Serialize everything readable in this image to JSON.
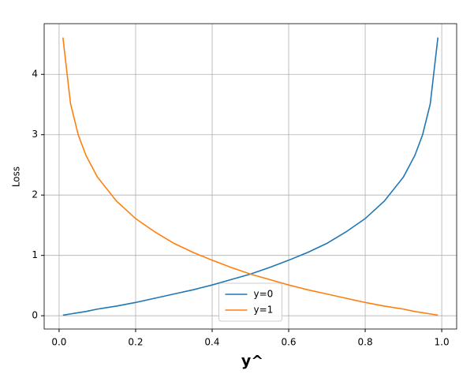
{
  "chart_data": {
    "type": "line",
    "x_label": "y^",
    "y_label": "Loss",
    "x": [
      0.01,
      0.03,
      0.05,
      0.07,
      0.1,
      0.15,
      0.2,
      0.25,
      0.3,
      0.35,
      0.4,
      0.45,
      0.5,
      0.55,
      0.6,
      0.65,
      0.7,
      0.75,
      0.8,
      0.85,
      0.9,
      0.93,
      0.95,
      0.97,
      0.99
    ],
    "series": [
      {
        "name": "y=0",
        "color": "#1f77b4",
        "values": [
          0.01,
          0.03,
          0.05,
          0.07,
          0.11,
          0.16,
          0.22,
          0.29,
          0.36,
          0.43,
          0.51,
          0.6,
          0.69,
          0.8,
          0.92,
          1.05,
          1.2,
          1.39,
          1.61,
          1.9,
          2.3,
          2.66,
          3.0,
          3.51,
          4.61
        ]
      },
      {
        "name": "y=1",
        "color": "#ff7f0e",
        "values": [
          4.61,
          3.51,
          3.0,
          2.66,
          2.3,
          1.9,
          1.61,
          1.39,
          1.2,
          1.05,
          0.92,
          0.8,
          0.69,
          0.6,
          0.51,
          0.43,
          0.36,
          0.29,
          0.22,
          0.16,
          0.11,
          0.07,
          0.05,
          0.03,
          0.01
        ]
      }
    ],
    "xlim": [
      -0.039,
      1.039
    ],
    "ylim": [
      -0.22,
      4.84
    ],
    "xticks": [
      {
        "value": 0,
        "label": "0.0"
      },
      0.2,
      0.4,
      0.6,
      0.8,
      {
        "value": 1,
        "label": "1.0"
      }
    ],
    "yticks": [
      0,
      1,
      2,
      3,
      4
    ],
    "grid": true,
    "legend": "lower center"
  }
}
